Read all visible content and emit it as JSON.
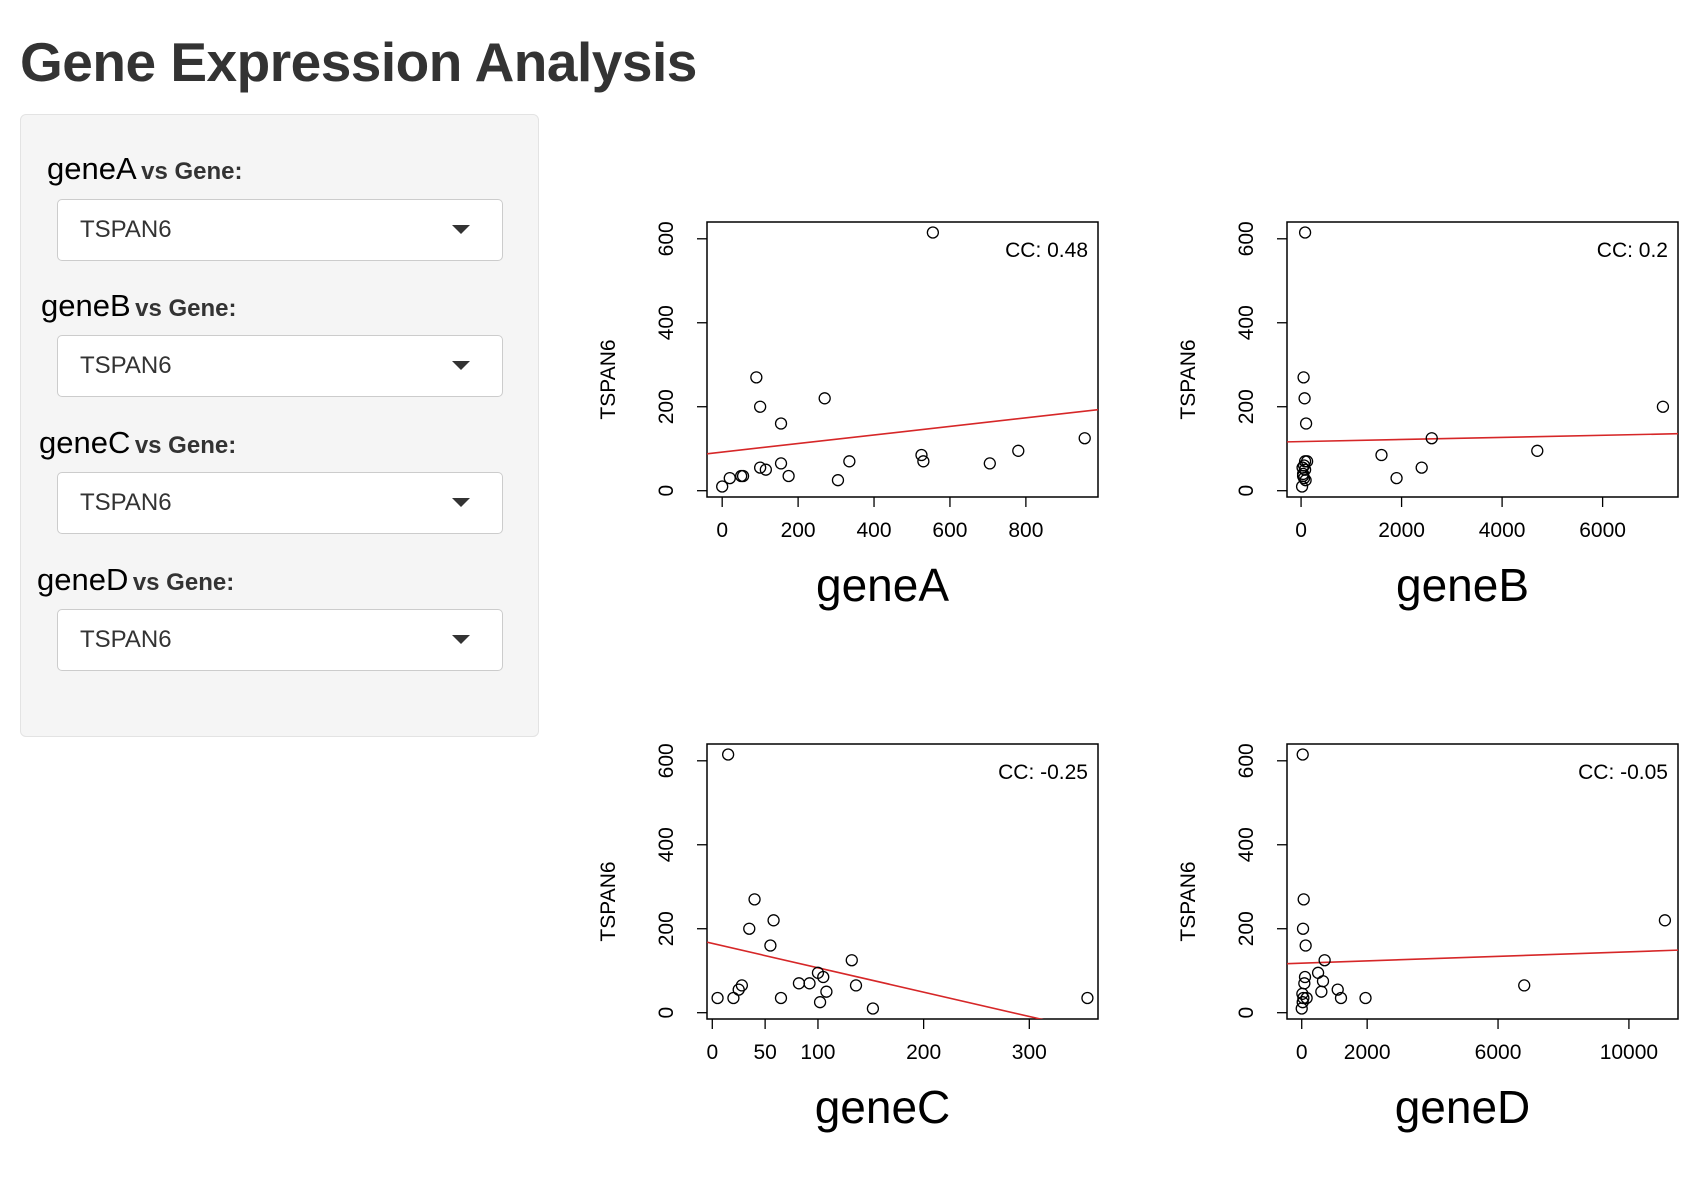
{
  "title": "Gene Expression Analysis",
  "controls": [
    {
      "gene": "geneA",
      "vs": "vs Gene:",
      "value": "TSPAN6"
    },
    {
      "gene": "geneB",
      "vs": "vs Gene:",
      "value": "TSPAN6"
    },
    {
      "gene": "geneC",
      "vs": "vs Gene:",
      "value": "TSPAN6"
    },
    {
      "gene": "geneD",
      "vs": "vs Gene:",
      "value": "TSPAN6"
    }
  ],
  "colors": {
    "regression": "#d62728",
    "points": "#000000"
  },
  "chart_data": [
    {
      "type": "scatter",
      "xlabel": "geneA",
      "ylabel": "TSPAN6",
      "annotation": "CC: 0.48",
      "xlim": [
        -40,
        990
      ],
      "ylim": [
        -15,
        640
      ],
      "xticks": [
        0,
        200,
        400,
        600,
        800
      ],
      "yticks": [
        0,
        200,
        400,
        600
      ],
      "x": [
        0,
        50,
        20,
        55,
        100,
        115,
        90,
        100,
        155,
        175,
        155,
        305,
        335,
        270,
        530,
        525,
        555,
        705,
        780,
        955
      ],
      "y": [
        10,
        35,
        30,
        35,
        55,
        50,
        270,
        200,
        65,
        35,
        160,
        25,
        70,
        220,
        70,
        85,
        615,
        65,
        95,
        125
      ],
      "fit": {
        "intercept": 92,
        "slope": 0.102
      }
    },
    {
      "type": "scatter",
      "xlabel": "geneB",
      "ylabel": "TSPAN6",
      "annotation": "CC: 0.2",
      "xlim": [
        -280,
        7500
      ],
      "ylim": [
        -15,
        640
      ],
      "xticks": [
        0,
        2000,
        4000,
        6000
      ],
      "yticks": [
        0,
        200,
        400,
        600
      ],
      "x": [
        20,
        40,
        60,
        80,
        30,
        90,
        120,
        50,
        70,
        100,
        40,
        80,
        60,
        1600,
        1900,
        2400,
        2600,
        4700,
        7200,
        80
      ],
      "y": [
        10,
        35,
        30,
        70,
        55,
        25,
        70,
        270,
        220,
        160,
        40,
        50,
        60,
        85,
        30,
        55,
        125,
        95,
        200,
        615
      ],
      "fit": {
        "intercept": 117,
        "slope": 0.0025
      }
    },
    {
      "type": "scatter",
      "xlabel": "geneC",
      "ylabel": "TSPAN6",
      "annotation": "CC: -0.25",
      "xlim": [
        -5,
        365
      ],
      "ylim": [
        -15,
        640
      ],
      "xticks": [
        0,
        50,
        100,
        200,
        300
      ],
      "yticks": [
        0,
        200,
        400,
        600
      ],
      "x": [
        5,
        15,
        20,
        25,
        28,
        35,
        40,
        55,
        58,
        65,
        82,
        92,
        100,
        102,
        105,
        108,
        132,
        136,
        152,
        355
      ],
      "y": [
        35,
        615,
        35,
        55,
        65,
        200,
        270,
        160,
        220,
        35,
        70,
        70,
        95,
        25,
        85,
        50,
        125,
        65,
        10,
        35
      ],
      "fit": {
        "intercept": 165,
        "slope": -0.58
      }
    },
    {
      "type": "scatter",
      "xlabel": "geneD",
      "ylabel": "TSPAN6",
      "annotation": "CC: -0.05",
      "xlim": [
        -450,
        11500
      ],
      "ylim": [
        -15,
        640
      ],
      "xticks": [
        0,
        2000,
        6000,
        10000
      ],
      "yticks": [
        0,
        200,
        400,
        600
      ],
      "x": [
        0,
        50,
        80,
        100,
        40,
        60,
        120,
        150,
        30,
        500,
        600,
        650,
        700,
        1100,
        1200,
        1950,
        6800,
        11100,
        30,
        20
      ],
      "y": [
        10,
        35,
        70,
        85,
        200,
        270,
        160,
        35,
        615,
        95,
        50,
        75,
        125,
        55,
        35,
        35,
        65,
        220,
        25,
        45
      ],
      "fit": {
        "intercept": 118,
        "slope": 0.0027
      }
    }
  ]
}
